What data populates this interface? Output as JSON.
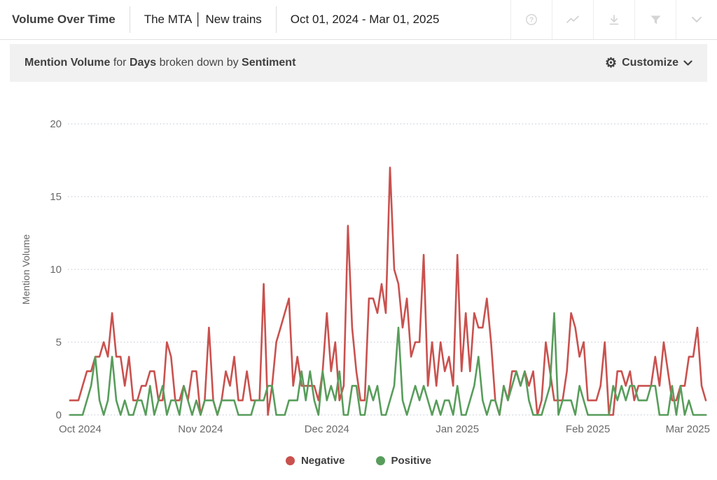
{
  "header": {
    "title": "Volume Over Time",
    "scope": "The MTA │ New trains",
    "date_range": "Oct 01, 2024 - Mar 01, 2025",
    "icons": [
      "help-icon",
      "line-chart-icon",
      "download-icon",
      "filter-icon",
      "chevron-down-icon"
    ]
  },
  "toolbar": {
    "part1_bold": "Mention Volume",
    "part2": " for ",
    "part3_bold": "Days",
    "part4": " broken down by ",
    "part5_bold": "Sentiment",
    "customize_label": "Customize",
    "gear_icon": "⚙"
  },
  "chart_data": {
    "type": "line",
    "title": "Mention Volume for Days broken down by Sentiment",
    "xlabel": "",
    "ylabel": "Mention Volume",
    "x_unit": "day",
    "x_range": [
      "Oct 01, 2024",
      "Mar 01, 2025"
    ],
    "x_tick_labels": [
      "Oct 2024",
      "Nov 2024",
      "Dec 2024",
      "Jan 2025",
      "Feb 2025",
      "Mar 2025"
    ],
    "x_tick_day_offsets": [
      0,
      31,
      61,
      92,
      123,
      151
    ],
    "y_ticks": [
      0,
      5,
      10,
      15,
      20
    ],
    "ylim": [
      0,
      20
    ],
    "grid": "dotted-horizontal",
    "grid_color": "#c9cfda",
    "axis_text_color": "#6a6a6a",
    "legend_position": "bottom-center",
    "series": [
      {
        "name": "Negative",
        "color": "#c9514e",
        "values": [
          1,
          1,
          1,
          2,
          3,
          3,
          4,
          4,
          5,
          4,
          7,
          4,
          4,
          2,
          4,
          1,
          1,
          2,
          2,
          3,
          3,
          1,
          1,
          5,
          4,
          1,
          1,
          2,
          1,
          3,
          3,
          0,
          1,
          6,
          1,
          0,
          1,
          3,
          2,
          4,
          1,
          1,
          3,
          1,
          1,
          1,
          9,
          0,
          2,
          5,
          6,
          7,
          8,
          2,
          4,
          2,
          2,
          2,
          2,
          1,
          3,
          7,
          3,
          5,
          1,
          2,
          13,
          6,
          3,
          1,
          1,
          8,
          8,
          7,
          9,
          7,
          17,
          10,
          9,
          6,
          8,
          4,
          5,
          5,
          11,
          2,
          5,
          2,
          5,
          3,
          4,
          2,
          11,
          3,
          7,
          3,
          7,
          6,
          6,
          8,
          5,
          1,
          0,
          2,
          1,
          3,
          3,
          2,
          3,
          2,
          3,
          0,
          1,
          5,
          3,
          1,
          1,
          1,
          3,
          7,
          6,
          4,
          5,
          1,
          1,
          1,
          2,
          5,
          0,
          0,
          3,
          3,
          2,
          3,
          1,
          2,
          2,
          2,
          2,
          4,
          2,
          5,
          3,
          1,
          1,
          2,
          2,
          4,
          4,
          6,
          2,
          1
        ]
      },
      {
        "name": "Positive",
        "color": "#589d5b",
        "values": [
          0,
          0,
          0,
          0,
          1,
          2,
          4,
          1,
          0,
          1,
          4,
          1,
          0,
          1,
          0,
          0,
          1,
          1,
          0,
          2,
          0,
          1,
          2,
          0,
          1,
          1,
          0,
          2,
          1,
          0,
          1,
          0,
          1,
          1,
          1,
          0,
          1,
          1,
          1,
          1,
          0,
          0,
          0,
          0,
          1,
          1,
          1,
          2,
          2,
          0,
          0,
          0,
          1,
          1,
          1,
          3,
          1,
          3,
          1,
          0,
          3,
          1,
          2,
          1,
          3,
          0,
          0,
          2,
          2,
          0,
          0,
          2,
          1,
          2,
          0,
          0,
          1,
          2,
          6,
          1,
          0,
          1,
          2,
          1,
          2,
          1,
          0,
          1,
          0,
          1,
          1,
          0,
          2,
          0,
          0,
          1,
          2,
          4,
          1,
          0,
          1,
          1,
          0,
          2,
          1,
          2,
          3,
          2,
          3,
          1,
          0,
          0,
          0,
          1,
          2,
          7,
          0,
          1,
          1,
          1,
          0,
          2,
          1,
          0,
          0,
          0,
          0,
          0,
          0,
          2,
          1,
          2,
          1,
          2,
          2,
          1,
          1,
          1,
          2,
          2,
          0,
          0,
          0,
          2,
          0,
          2,
          0,
          1,
          0,
          0,
          0,
          0
        ]
      }
    ]
  },
  "legend": {
    "items": [
      {
        "label": "Negative",
        "color": "#c9514e"
      },
      {
        "label": "Positive",
        "color": "#589d5b"
      }
    ]
  }
}
